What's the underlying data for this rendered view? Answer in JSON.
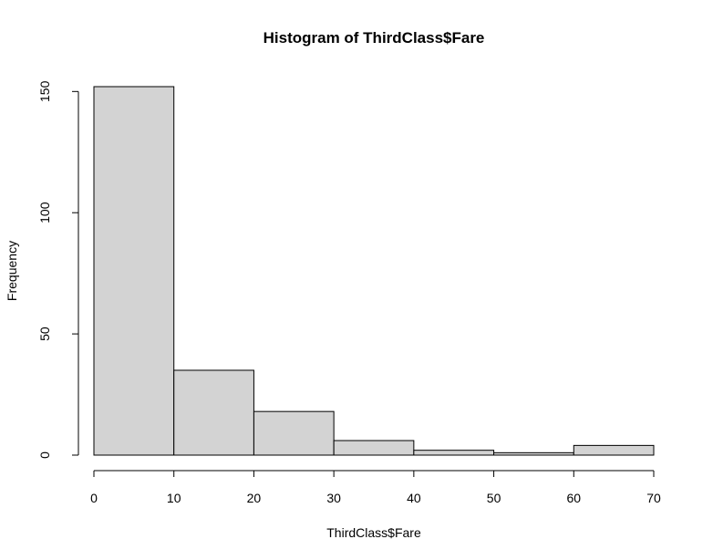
{
  "chart_data": {
    "type": "bar",
    "title": "Histogram of ThirdClass$Fare",
    "xlabel": "ThirdClass$Fare",
    "ylabel": "Frequency",
    "bins": [
      {
        "from": 0,
        "to": 10,
        "count": 152
      },
      {
        "from": 10,
        "to": 20,
        "count": 35
      },
      {
        "from": 20,
        "to": 30,
        "count": 18
      },
      {
        "from": 30,
        "to": 40,
        "count": 6
      },
      {
        "from": 40,
        "to": 50,
        "count": 2
      },
      {
        "from": 50,
        "to": 60,
        "count": 1
      },
      {
        "from": 60,
        "to": 70,
        "count": 4
      }
    ],
    "xlim": [
      0,
      70
    ],
    "ylim": [
      0,
      152
    ],
    "xticks": [
      0,
      10,
      20,
      30,
      40,
      50,
      60,
      70
    ],
    "yticks": [
      0,
      50,
      100,
      150
    ],
    "bar_fill": "#d3d3d3",
    "bar_stroke": "#000000",
    "grid": false
  }
}
